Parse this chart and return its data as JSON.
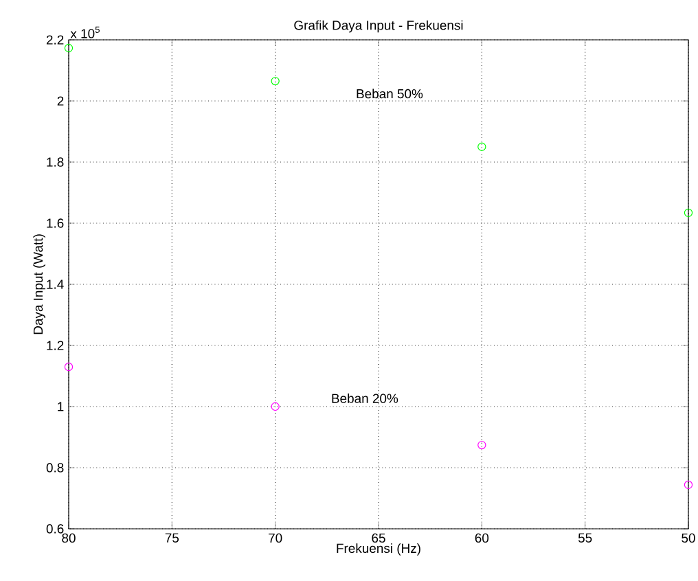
{
  "chart_data": {
    "type": "scatter",
    "title": "Grafik Daya Input  - Frekuensi",
    "xlabel": "Frekuensi (Hz)",
    "ylabel": "Daya Input (Watt)",
    "x": [
      80,
      70,
      60,
      50
    ],
    "series": [
      {
        "color": "#00ff00",
        "values": [
          2.173,
          2.065,
          1.85,
          1.634
        ]
      },
      {
        "color": "#ff00ff",
        "values": [
          1.13,
          1.0,
          0.874,
          0.744
        ]
      }
    ],
    "xlim": [
      80,
      50
    ],
    "xticks": [
      80,
      75,
      70,
      65,
      60,
      55,
      50
    ],
    "ylim": [
      0.6,
      2.2
    ],
    "yticks": [
      0.6,
      0.8,
      1,
      1.2,
      1.4,
      1.6,
      1.8,
      2,
      2.2
    ],
    "annotations": [
      "x 10$^{5}$",
      "Beban 50%",
      "Beban 20%"
    ],
    "grid": true,
    "marker": "circle"
  }
}
